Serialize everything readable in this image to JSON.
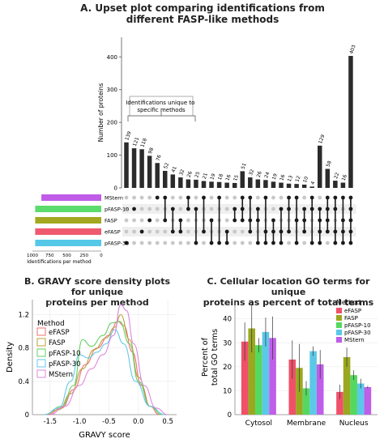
{
  "panel_a": {
    "title_line1": "A. Upset plot comparing identifications from",
    "title_line2": "different FASP-like methods",
    "annotation_line1": "Identifications unique to",
    "annotation_line2": "specific methods",
    "set_size_label": "Identifications per method",
    "set_size_ticks": [
      "1000",
      "750",
      "500",
      "250",
      "0"
    ]
  },
  "panel_b": {
    "title_line1": "B. GRAVY score density plots for unique",
    "title_line2": "proteins per method",
    "legend_title": "Method"
  },
  "panel_c": {
    "title_line1": "C. Cellular location GO terms for unique",
    "title_line2": "proteins as percent of total terms",
    "legend_title": "Method"
  },
  "chart_data": [
    {
      "type": "bar",
      "panel": "A",
      "ylabel": "Number of proteins",
      "ylim": [
        0,
        460
      ],
      "yticks": [
        0,
        100,
        200,
        300,
        400
      ],
      "values": [
        139,
        121,
        118,
        98,
        76,
        52,
        41,
        32,
        26,
        25,
        21,
        19,
        18,
        16,
        15,
        51,
        32,
        26,
        24,
        19,
        16,
        13,
        12,
        10,
        4,
        129,
        58,
        22,
        16,
        403
      ],
      "bar_labels": [
        "139",
        "121",
        "118",
        "98",
        "76",
        "52",
        "41",
        "32",
        "26",
        "25",
        "21",
        "19",
        "18",
        "16",
        "15",
        "51",
        "32",
        "26",
        "24",
        "19",
        "16",
        "13",
        "12",
        "10",
        "4",
        "129",
        "58",
        "22",
        "16",
        "403"
      ],
      "sets": [
        {
          "name": "MStern",
          "size": 870,
          "color": "#c05ce8"
        },
        {
          "name": "pFASP-10",
          "size": 960,
          "color": "#5cdc6c"
        },
        {
          "name": "FASP",
          "size": 960,
          "color": "#a3a820"
        },
        {
          "name": "eFASP",
          "size": 960,
          "color": "#f05a6e"
        },
        {
          "name": "pFASP-30",
          "size": 960,
          "color": "#55c8e8"
        }
      ],
      "intersections": [
        [
          4
        ],
        [
          1
        ],
        [
          3
        ],
        [
          2
        ],
        [
          0
        ],
        [
          0,
          2
        ],
        [
          1,
          3
        ],
        [
          2,
          3
        ],
        [
          0,
          1
        ],
        [
          1,
          4
        ],
        [
          0,
          3
        ],
        [
          2,
          4
        ],
        [
          0,
          4
        ],
        [
          3,
          4
        ],
        [
          1,
          2
        ],
        [
          0,
          1,
          2
        ],
        [
          0,
          2,
          3
        ],
        [
          1,
          2,
          4
        ],
        [
          0,
          3,
          4
        ],
        [
          2,
          3,
          4
        ],
        [
          1,
          3,
          4
        ],
        [
          0,
          1,
          3
        ],
        [
          0,
          2,
          4
        ],
        [
          1,
          2,
          3
        ],
        [
          0,
          1,
          4
        ],
        [
          1,
          2,
          3,
          4
        ],
        [
          0,
          1,
          2,
          3
        ],
        [
          0,
          1,
          3,
          4
        ],
        [
          0,
          2,
          3,
          4
        ],
        [
          0,
          1,
          2,
          3,
          4
        ]
      ]
    },
    {
      "type": "line",
      "panel": "B",
      "xlabel": "GRAVY score",
      "ylabel": "Density",
      "xlim": [
        -1.8,
        0.65
      ],
      "ylim": [
        0,
        1.38
      ],
      "xticks": [
        -1.5,
        -1.0,
        -0.5,
        0.0,
        0.5
      ],
      "xtick_labels": [
        "-1.5",
        "-1.0",
        "-0.5",
        "0.0",
        "0.5"
      ],
      "yticks": [
        0.0,
        0.4,
        0.8,
        1.2
      ],
      "ytick_labels": [
        "0",
        "0.4",
        "0.8",
        "1.2"
      ],
      "series": [
        {
          "name": "eFASP",
          "color": "#f07070",
          "points": [
            [
              -1.55,
              0
            ],
            [
              -1.3,
              0.08
            ],
            [
              -1.1,
              0.3
            ],
            [
              -0.9,
              0.6
            ],
            [
              -0.7,
              0.8
            ],
            [
              -0.5,
              0.95
            ],
            [
              -0.35,
              1.12
            ],
            [
              -0.25,
              1.07
            ],
            [
              -0.1,
              0.75
            ],
            [
              0.05,
              0.35
            ],
            [
              0.2,
              0.1
            ],
            [
              0.35,
              0
            ]
          ]
        },
        {
          "name": "FASP",
          "color": "#b8a040",
          "points": [
            [
              -1.6,
              0
            ],
            [
              -1.35,
              0.06
            ],
            [
              -1.15,
              0.25
            ],
            [
              -0.95,
              0.55
            ],
            [
              -0.75,
              0.78
            ],
            [
              -0.55,
              0.92
            ],
            [
              -0.4,
              1.05
            ],
            [
              -0.3,
              1.2
            ],
            [
              -0.15,
              0.9
            ],
            [
              0.0,
              0.45
            ],
            [
              0.2,
              0.1
            ],
            [
              0.4,
              0
            ]
          ]
        },
        {
          "name": "pFASP-10",
          "color": "#66d066",
          "points": [
            [
              -1.6,
              0
            ],
            [
              -1.3,
              0.1
            ],
            [
              -1.1,
              0.35
            ],
            [
              -0.95,
              0.9
            ],
            [
              -0.8,
              0.82
            ],
            [
              -0.6,
              0.95
            ],
            [
              -0.45,
              1.1
            ],
            [
              -0.32,
              1.12
            ],
            [
              -0.15,
              0.85
            ],
            [
              0.0,
              0.4
            ],
            [
              0.2,
              0.1
            ],
            [
              0.4,
              0
            ]
          ]
        },
        {
          "name": "pFASP-30",
          "color": "#66c8e8",
          "points": [
            [
              -1.6,
              0
            ],
            [
              -1.35,
              0.08
            ],
            [
              -1.15,
              0.4
            ],
            [
              -1.0,
              0.72
            ],
            [
              -0.85,
              0.68
            ],
            [
              -0.7,
              0.75
            ],
            [
              -0.55,
              0.85
            ],
            [
              -0.4,
              1.02
            ],
            [
              -0.25,
              0.85
            ],
            [
              -0.05,
              0.4
            ],
            [
              0.2,
              0.1
            ],
            [
              0.45,
              0
            ]
          ]
        },
        {
          "name": "MStern",
          "color": "#dd88dd",
          "points": [
            [
              -1.5,
              0
            ],
            [
              -1.25,
              0.1
            ],
            [
              -1.0,
              0.35
            ],
            [
              -0.8,
              0.55
            ],
            [
              -0.6,
              0.72
            ],
            [
              -0.42,
              0.95
            ],
            [
              -0.3,
              1.32
            ],
            [
              -0.2,
              1.25
            ],
            [
              -0.08,
              0.85
            ],
            [
              0.1,
              0.35
            ],
            [
              0.3,
              0.08
            ],
            [
              0.5,
              0
            ]
          ]
        }
      ]
    },
    {
      "type": "bar",
      "panel": "C",
      "xlabel": "",
      "ylabel": "Percent of total GO terms",
      "ylim": [
        0,
        48
      ],
      "yticks": [
        0,
        10,
        20,
        30,
        40
      ],
      "categories": [
        "Cytosol",
        "Membrane",
        "Nucleus"
      ],
      "series": [
        {
          "name": "eFASP",
          "color": "#f0506a",
          "values": [
            30.5,
            23.0,
            9.5
          ],
          "err": [
            8,
            8,
            3
          ]
        },
        {
          "name": "FASP",
          "color": "#9aa820",
          "values": [
            36.0,
            19.5,
            24.0
          ],
          "err": [
            10,
            10,
            4
          ]
        },
        {
          "name": "pFASP-10",
          "color": "#55d860",
          "values": [
            29.0,
            11.0,
            16.5
          ],
          "err": [
            3,
            3,
            2
          ]
        },
        {
          "name": "pFASP-30",
          "color": "#5cc8e8",
          "values": [
            34.5,
            26.5,
            13.0
          ],
          "err": [
            6,
            2,
            2
          ]
        },
        {
          "name": "MStern",
          "color": "#bf5ee8",
          "values": [
            32.0,
            21.0,
            11.5
          ],
          "err": [
            9,
            6,
            0.5
          ]
        }
      ]
    }
  ]
}
